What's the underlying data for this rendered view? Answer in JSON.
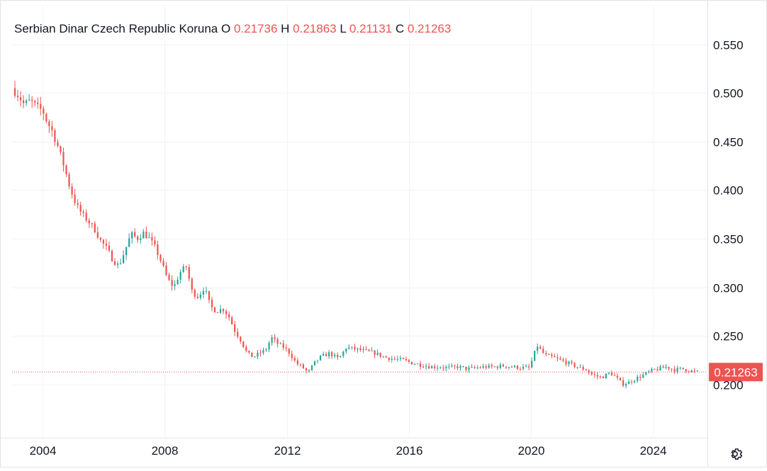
{
  "legend": {
    "symbol": "Serbian Dinar Czech Republic Koruna",
    "open_label": "O",
    "open": "0.21736",
    "high_label": "H",
    "high": "0.21863",
    "low_label": "L",
    "low": "0.21131",
    "close_label": "C",
    "close": "0.21263"
  },
  "colors": {
    "up": "#26a69a",
    "down": "#ef5350",
    "grid": "#f0f3fa",
    "axis_text": "#131722"
  },
  "icons": {
    "settings": "gear-icon"
  },
  "chart_data": {
    "type": "candlestick",
    "y_axis_position": "right",
    "ylim": [
      0.145,
      0.59
    ],
    "xlim": [
      2003.0,
      2025.78
    ],
    "y_ticks": [
      0.2,
      0.25,
      0.3,
      0.35,
      0.4,
      0.45,
      0.5,
      0.55
    ],
    "y_tick_labels": [
      "0.200",
      "0.250",
      "0.300",
      "0.350",
      "0.400",
      "0.450",
      "0.500",
      "0.550"
    ],
    "x_ticks": [
      2004,
      2008,
      2012,
      2016,
      2020,
      2024
    ],
    "x_tick_labels": [
      "2004",
      "2008",
      "2012",
      "2016",
      "2020",
      "2024"
    ],
    "last_price": 0.21263,
    "last_price_label": "0.21263",
    "series": [
      {
        "values": [
          [
            2003.0,
            0.505
          ],
          [
            2003.2,
            0.498
          ],
          [
            2003.4,
            0.488
          ],
          [
            2003.6,
            0.492
          ],
          [
            2003.8,
            0.486
          ],
          [
            2004.0,
            0.482
          ],
          [
            2004.15,
            0.47
          ],
          [
            2004.3,
            0.462
          ],
          [
            2004.5,
            0.445
          ],
          [
            2004.7,
            0.425
          ],
          [
            2004.9,
            0.402
          ],
          [
            2005.1,
            0.385
          ],
          [
            2005.3,
            0.375
          ],
          [
            2005.5,
            0.368
          ],
          [
            2005.7,
            0.36
          ],
          [
            2005.9,
            0.348
          ],
          [
            2006.1,
            0.34
          ],
          [
            2006.3,
            0.328
          ],
          [
            2006.5,
            0.322
          ],
          [
            2006.7,
            0.338
          ],
          [
            2006.9,
            0.355
          ],
          [
            2007.1,
            0.35
          ],
          [
            2007.3,
            0.356
          ],
          [
            2007.5,
            0.35
          ],
          [
            2007.7,
            0.34
          ],
          [
            2007.9,
            0.325
          ],
          [
            2008.1,
            0.308
          ],
          [
            2008.3,
            0.3
          ],
          [
            2008.5,
            0.315
          ],
          [
            2008.7,
            0.322
          ],
          [
            2008.9,
            0.295
          ],
          [
            2009.1,
            0.29
          ],
          [
            2009.3,
            0.3
          ],
          [
            2009.5,
            0.28
          ],
          [
            2009.7,
            0.275
          ],
          [
            2009.9,
            0.278
          ],
          [
            2010.1,
            0.27
          ],
          [
            2010.3,
            0.255
          ],
          [
            2010.5,
            0.245
          ],
          [
            2010.7,
            0.232
          ],
          [
            2010.9,
            0.228
          ],
          [
            2011.1,
            0.232
          ],
          [
            2011.3,
            0.235
          ],
          [
            2011.5,
            0.248
          ],
          [
            2011.7,
            0.242
          ],
          [
            2011.9,
            0.238
          ],
          [
            2012.1,
            0.232
          ],
          [
            2012.3,
            0.222
          ],
          [
            2012.5,
            0.218
          ],
          [
            2012.7,
            0.212
          ],
          [
            2012.9,
            0.222
          ],
          [
            2013.1,
            0.228
          ],
          [
            2013.4,
            0.232
          ],
          [
            2013.7,
            0.226
          ],
          [
            2013.95,
            0.238
          ],
          [
            2014.3,
            0.236
          ],
          [
            2014.6,
            0.234
          ],
          [
            2014.9,
            0.232
          ],
          [
            2015.2,
            0.228
          ],
          [
            2015.5,
            0.226
          ],
          [
            2015.8,
            0.225
          ],
          [
            2016.1,
            0.222
          ],
          [
            2016.4,
            0.22
          ],
          [
            2016.7,
            0.218
          ],
          [
            2017.0,
            0.218
          ],
          [
            2017.3,
            0.217
          ],
          [
            2017.6,
            0.218
          ],
          [
            2017.9,
            0.216
          ],
          [
            2018.2,
            0.217
          ],
          [
            2018.5,
            0.218
          ],
          [
            2018.8,
            0.218
          ],
          [
            2019.1,
            0.219
          ],
          [
            2019.4,
            0.218
          ],
          [
            2019.7,
            0.217
          ],
          [
            2019.95,
            0.217
          ],
          [
            2020.2,
            0.24
          ],
          [
            2020.45,
            0.23
          ],
          [
            2020.7,
            0.228
          ],
          [
            2020.95,
            0.225
          ],
          [
            2021.2,
            0.222
          ],
          [
            2021.5,
            0.218
          ],
          [
            2021.8,
            0.215
          ],
          [
            2022.0,
            0.21
          ],
          [
            2022.3,
            0.207
          ],
          [
            2022.6,
            0.212
          ],
          [
            2022.85,
            0.205
          ],
          [
            2023.0,
            0.2
          ],
          [
            2023.2,
            0.202
          ],
          [
            2023.45,
            0.206
          ],
          [
            2023.7,
            0.21
          ],
          [
            2023.95,
            0.214
          ],
          [
            2024.2,
            0.216
          ],
          [
            2024.45,
            0.218
          ],
          [
            2024.7,
            0.215
          ],
          [
            2024.95,
            0.216
          ],
          [
            2025.2,
            0.214
          ],
          [
            2025.45,
            0.2126
          ]
        ]
      }
    ]
  }
}
